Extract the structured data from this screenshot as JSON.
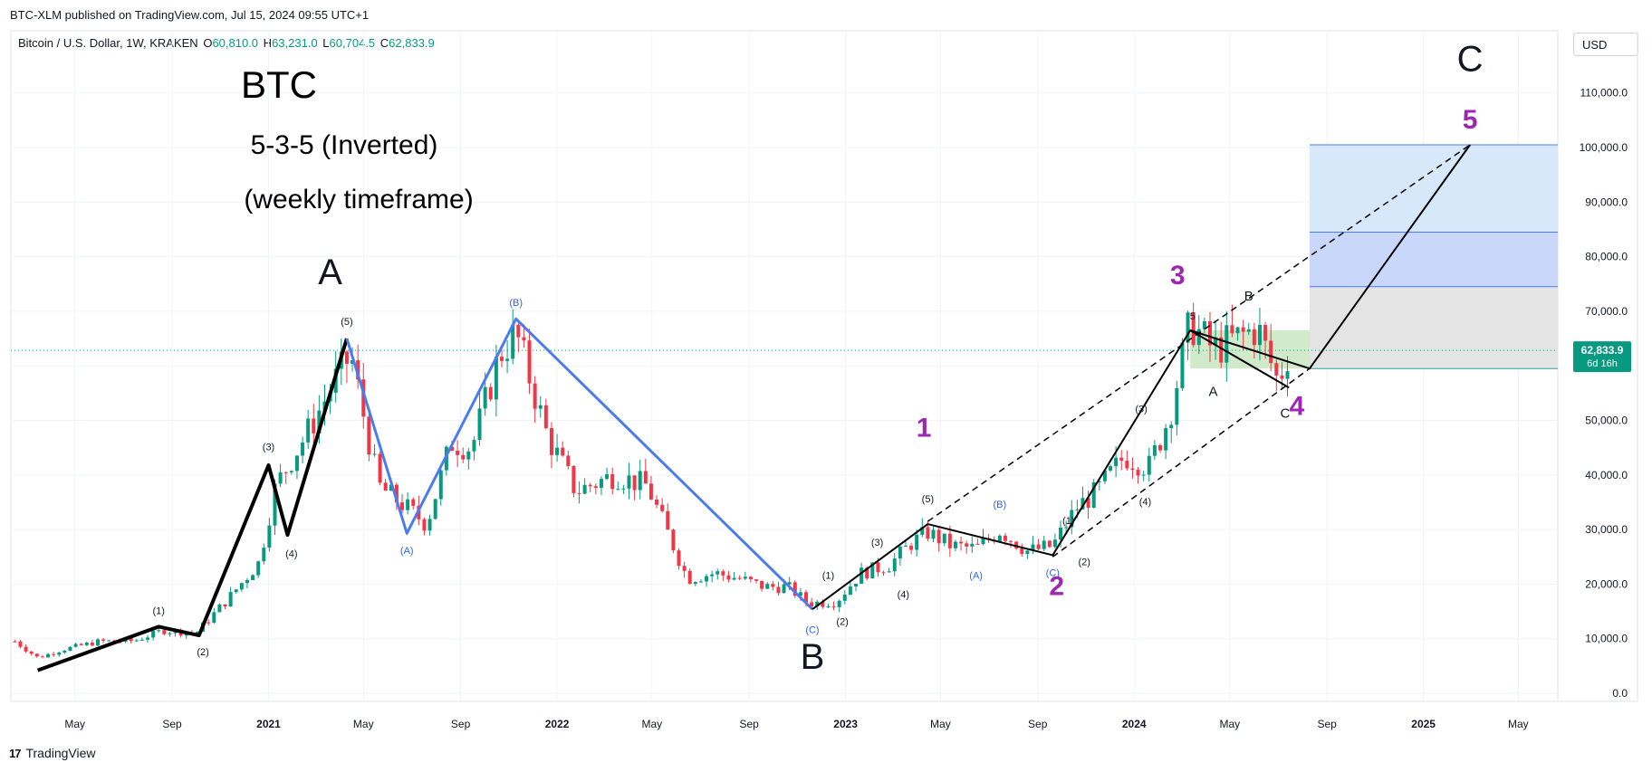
{
  "header": {
    "published": "BTC-XLM published on TradingView.com, Jul 15, 2024 09:55 UTC+1"
  },
  "legend": {
    "symbol": "Bitcoin / U.S. Dollar, 1W, KRAKEN",
    "open_label": "O",
    "open": "60,810.0",
    "high_label": "H",
    "high": "63,231.0",
    "low_label": "L",
    "low": "60,704.5",
    "close_label": "C",
    "close": "62,833.9"
  },
  "currency_button": "USD",
  "price_badge": {
    "price": "62,833.9",
    "countdown": "6d 16h"
  },
  "footer": {
    "logo_text": "TradingView"
  },
  "colors": {
    "up": "#089981",
    "down": "#f23645",
    "wave_black": "#000000",
    "wave_blue": "#4a7cf0",
    "wave_purple": "#9c27b0",
    "label_blue": "#2962ff",
    "projection_light": "#d7e8fb",
    "projection_mid": "#c9d7fb",
    "projection_gray": "#e4e4e4",
    "consolidation_green": "#c9e6c1"
  },
  "chart_data": {
    "type": "line",
    "title": "BTC",
    "subtitle": "5-3-5 (Inverted)",
    "subtitle2": "(weekly timeframe)",
    "xlabel": "",
    "ylabel": "",
    "ylim": [
      0,
      110000
    ],
    "x_range": [
      "2020-02-10",
      "2025-06-20"
    ],
    "x_ticks": [
      {
        "date": "2020-05-01",
        "label": "May"
      },
      {
        "date": "2020-09-01",
        "label": "Sep"
      },
      {
        "date": "2021-01-01",
        "label": "2021",
        "bold": true
      },
      {
        "date": "2021-05-01",
        "label": "May"
      },
      {
        "date": "2021-09-01",
        "label": "Sep"
      },
      {
        "date": "2022-01-01",
        "label": "2022",
        "bold": true
      },
      {
        "date": "2022-05-01",
        "label": "May"
      },
      {
        "date": "2022-09-01",
        "label": "Sep"
      },
      {
        "date": "2023-01-01",
        "label": "2023",
        "bold": true
      },
      {
        "date": "2023-05-01",
        "label": "May"
      },
      {
        "date": "2023-09-01",
        "label": "Sep"
      },
      {
        "date": "2024-01-01",
        "label": "2024",
        "bold": true
      },
      {
        "date": "2024-05-01",
        "label": "May"
      },
      {
        "date": "2024-09-01",
        "label": "Sep"
      },
      {
        "date": "2025-01-01",
        "label": "2025",
        "bold": true
      },
      {
        "date": "2025-05-01",
        "label": "May"
      }
    ],
    "y_ticks": [
      {
        "value": 0,
        "label": "0.0"
      },
      {
        "value": 10000,
        "label": "10,000.0"
      },
      {
        "value": 20000,
        "label": "20,000.0"
      },
      {
        "value": 30000,
        "label": "30,000.0"
      },
      {
        "value": 40000,
        "label": "40,000.0"
      },
      {
        "value": 50000,
        "label": "50,000.0"
      },
      {
        "value": 60000,
        "label": "60,000.0"
      },
      {
        "value": 70000,
        "label": "70,000.0"
      },
      {
        "value": 80000,
        "label": "80,000.0"
      },
      {
        "value": 90000,
        "label": "90,000.0"
      },
      {
        "value": 100000,
        "label": "100,000.0"
      },
      {
        "value": 110000,
        "label": "110,000.0"
      }
    ],
    "last_price": 62833.9,
    "series": [
      {
        "name": "BTC price (approx., weekly)",
        "x": [
          "2020-02-15",
          "2020-03-15",
          "2020-04-15",
          "2020-06-01",
          "2020-07-15",
          "2020-08-20",
          "2020-10-01",
          "2020-11-15",
          "2020-12-20",
          "2021-01-10",
          "2021-02-20",
          "2021-03-25",
          "2021-04-15",
          "2021-05-20",
          "2021-06-25",
          "2021-07-20",
          "2021-08-20",
          "2021-09-15",
          "2021-10-20",
          "2021-11-10",
          "2021-12-20",
          "2022-01-25",
          "2022-03-15",
          "2022-04-25",
          "2022-06-15",
          "2022-07-20",
          "2022-08-20",
          "2022-09-20",
          "2022-10-20",
          "2022-11-15",
          "2022-12-20",
          "2023-01-20",
          "2023-02-25",
          "2023-03-25",
          "2023-04-15",
          "2023-05-15",
          "2023-06-15",
          "2023-07-15",
          "2023-08-20",
          "2023-09-20",
          "2023-10-20",
          "2023-11-15",
          "2023-12-20",
          "2024-01-20",
          "2024-02-15",
          "2024-03-12",
          "2024-04-10",
          "2024-05-10",
          "2024-06-05",
          "2024-07-01",
          "2024-07-15"
        ],
        "values": [
          9500,
          6500,
          8000,
          9500,
          9600,
          11500,
          11000,
          18000,
          24000,
          38000,
          48000,
          57000,
          62000,
          38000,
          34000,
          31000,
          46000,
          45000,
          62000,
          66000,
          47000,
          37000,
          40000,
          38000,
          21000,
          22000,
          21000,
          19500,
          19500,
          16500,
          16800,
          22000,
          23500,
          27500,
          29500,
          27000,
          26500,
          29800,
          26000,
          27000,
          34000,
          37000,
          43500,
          41500,
          51000,
          68000,
          63000,
          65000,
          67000,
          57000,
          62833.9
        ]
      }
    ],
    "wave_lines": [
      {
        "name": "primary-wave-A",
        "color": "black",
        "points": [
          [
            "2020-03-15",
            4200
          ],
          [
            "2020-08-15",
            12200
          ],
          [
            "2020-10-05",
            10600
          ],
          [
            "2021-01-01",
            41800
          ],
          [
            "2021-01-25",
            29000
          ],
          [
            "2021-04-10",
            65000
          ]
        ]
      },
      {
        "name": "primary-wave-B",
        "color": "blue",
        "points": [
          [
            "2021-04-10",
            65000
          ],
          [
            "2021-06-25",
            29300
          ],
          [
            "2021-11-10",
            68600
          ],
          [
            "2022-11-20",
            15400
          ]
        ]
      },
      {
        "name": "primary-wave-C-realized",
        "color": "black",
        "points": [
          [
            "2022-11-20",
            15400
          ],
          [
            "2023-04-15",
            31000
          ],
          [
            "2023-09-20",
            25300
          ],
          [
            "2024-03-12",
            66500
          ],
          [
            "2024-07-15",
            56000
          ]
        ]
      },
      {
        "name": "primary-wave-C-projection",
        "color": "black",
        "points": [
          [
            "2024-03-12",
            66500
          ],
          [
            "2024-08-10",
            59500
          ],
          [
            "2025-03-01",
            100500
          ]
        ]
      }
    ],
    "channel_lines": [
      {
        "name": "upper-channel",
        "from": [
          "2023-04-15",
          31500
        ],
        "to": [
          "2025-03-01",
          100500
        ]
      },
      {
        "name": "lower-channel",
        "from": [
          "2023-09-20",
          25000
        ],
        "to": [
          "2024-08-10",
          59500
        ]
      }
    ],
    "zones": [
      {
        "name": "target-zone-light-blue",
        "x": [
          "2024-08-10",
          "2025-06-20"
        ],
        "y": [
          84500,
          100500
        ],
        "color": "projection_light"
      },
      {
        "name": "target-zone-blue",
        "x": [
          "2024-08-10",
          "2025-06-20"
        ],
        "y": [
          74500,
          84500
        ],
        "color": "projection_mid"
      },
      {
        "name": "target-zone-gray",
        "x": [
          "2024-08-10",
          "2025-06-20"
        ],
        "y": [
          59500,
          74500
        ],
        "color": "projection_gray"
      },
      {
        "name": "consolidation-zone",
        "x": [
          "2024-03-12",
          "2024-08-10"
        ],
        "y": [
          59500,
          66500
        ],
        "color": "consolidation_green"
      }
    ],
    "annotations": [
      {
        "text": "A",
        "x": "2021-03-20",
        "y": 75000,
        "size": "xl",
        "color": "black"
      },
      {
        "text": "B",
        "x": "2022-11-20",
        "y": 4500,
        "size": "xl",
        "color": "black"
      },
      {
        "text": "C",
        "x": "2025-03-01",
        "y": 114000,
        "size": "xl",
        "color": "black"
      },
      {
        "text": "1",
        "x": "2023-04-10",
        "y": 47000,
        "size": "lg",
        "color": "purple"
      },
      {
        "text": "2",
        "x": "2023-09-25",
        "y": 18000,
        "size": "lg",
        "color": "purple"
      },
      {
        "text": "3",
        "x": "2024-02-25",
        "y": 75000,
        "size": "lg",
        "color": "purple"
      },
      {
        "text": "4",
        "x": "2024-07-25",
        "y": 51000,
        "size": "lg",
        "color": "purple"
      },
      {
        "text": "5",
        "x": "2025-03-01",
        "y": 103500,
        "size": "lg",
        "color": "purple"
      },
      {
        "text": "(1)",
        "x": "2020-08-15",
        "y": 14500,
        "size": "sm",
        "color": "black"
      },
      {
        "text": "(2)",
        "x": "2020-10-10",
        "y": 7000,
        "size": "sm",
        "color": "black"
      },
      {
        "text": "(3)",
        "x": "2021-01-01",
        "y": 44500,
        "size": "sm",
        "color": "black"
      },
      {
        "text": "(4)",
        "x": "2021-01-30",
        "y": 25000,
        "size": "sm",
        "color": "black"
      },
      {
        "text": "(5)",
        "x": "2021-04-10",
        "y": 67500,
        "size": "sm",
        "color": "black"
      },
      {
        "text": "(A)",
        "x": "2021-06-25",
        "y": 25500,
        "size": "sm",
        "color": "blue"
      },
      {
        "text": "(B)",
        "x": "2021-11-10",
        "y": 71000,
        "size": "sm",
        "color": "blue"
      },
      {
        "text": "(C)",
        "x": "2022-11-20",
        "y": 11000,
        "size": "sm",
        "color": "blue"
      },
      {
        "text": "(1)",
        "x": "2022-12-10",
        "y": 21000,
        "size": "sm",
        "color": "black"
      },
      {
        "text": "(2)",
        "x": "2022-12-28",
        "y": 12500,
        "size": "sm",
        "color": "black"
      },
      {
        "text": "(3)",
        "x": "2023-02-10",
        "y": 27000,
        "size": "sm",
        "color": "black"
      },
      {
        "text": "(4)",
        "x": "2023-03-15",
        "y": 17500,
        "size": "sm",
        "color": "black"
      },
      {
        "text": "(5)",
        "x": "2023-04-15",
        "y": 35000,
        "size": "sm",
        "color": "black"
      },
      {
        "text": "(A)",
        "x": "2023-06-15",
        "y": 21000,
        "size": "sm",
        "color": "blue"
      },
      {
        "text": "(B)",
        "x": "2023-07-15",
        "y": 34000,
        "size": "sm",
        "color": "blue"
      },
      {
        "text": "(C)",
        "x": "2023-09-20",
        "y": 21500,
        "size": "sm",
        "color": "blue"
      },
      {
        "text": "(1)",
        "x": "2023-10-10",
        "y": 31000,
        "size": "sm",
        "color": "black"
      },
      {
        "text": "(2)",
        "x": "2023-10-30",
        "y": 23500,
        "size": "sm",
        "color": "black"
      },
      {
        "text": "(3)",
        "x": "2024-01-10",
        "y": 51500,
        "size": "sm",
        "color": "black"
      },
      {
        "text": "(4)",
        "x": "2024-01-15",
        "y": 34500,
        "size": "sm",
        "color": "black"
      },
      {
        "text": "5",
        "x": "2024-03-15",
        "y": 68500,
        "size": "sm",
        "color": "black"
      },
      {
        "text": "A",
        "x": "2024-04-10",
        "y": 54500,
        "size": "md",
        "color": "black"
      },
      {
        "text": "B",
        "x": "2024-05-25",
        "y": 72000,
        "size": "md",
        "color": "black"
      },
      {
        "text": "C",
        "x": "2024-07-10",
        "y": 50500,
        "size": "md",
        "color": "black"
      }
    ]
  }
}
